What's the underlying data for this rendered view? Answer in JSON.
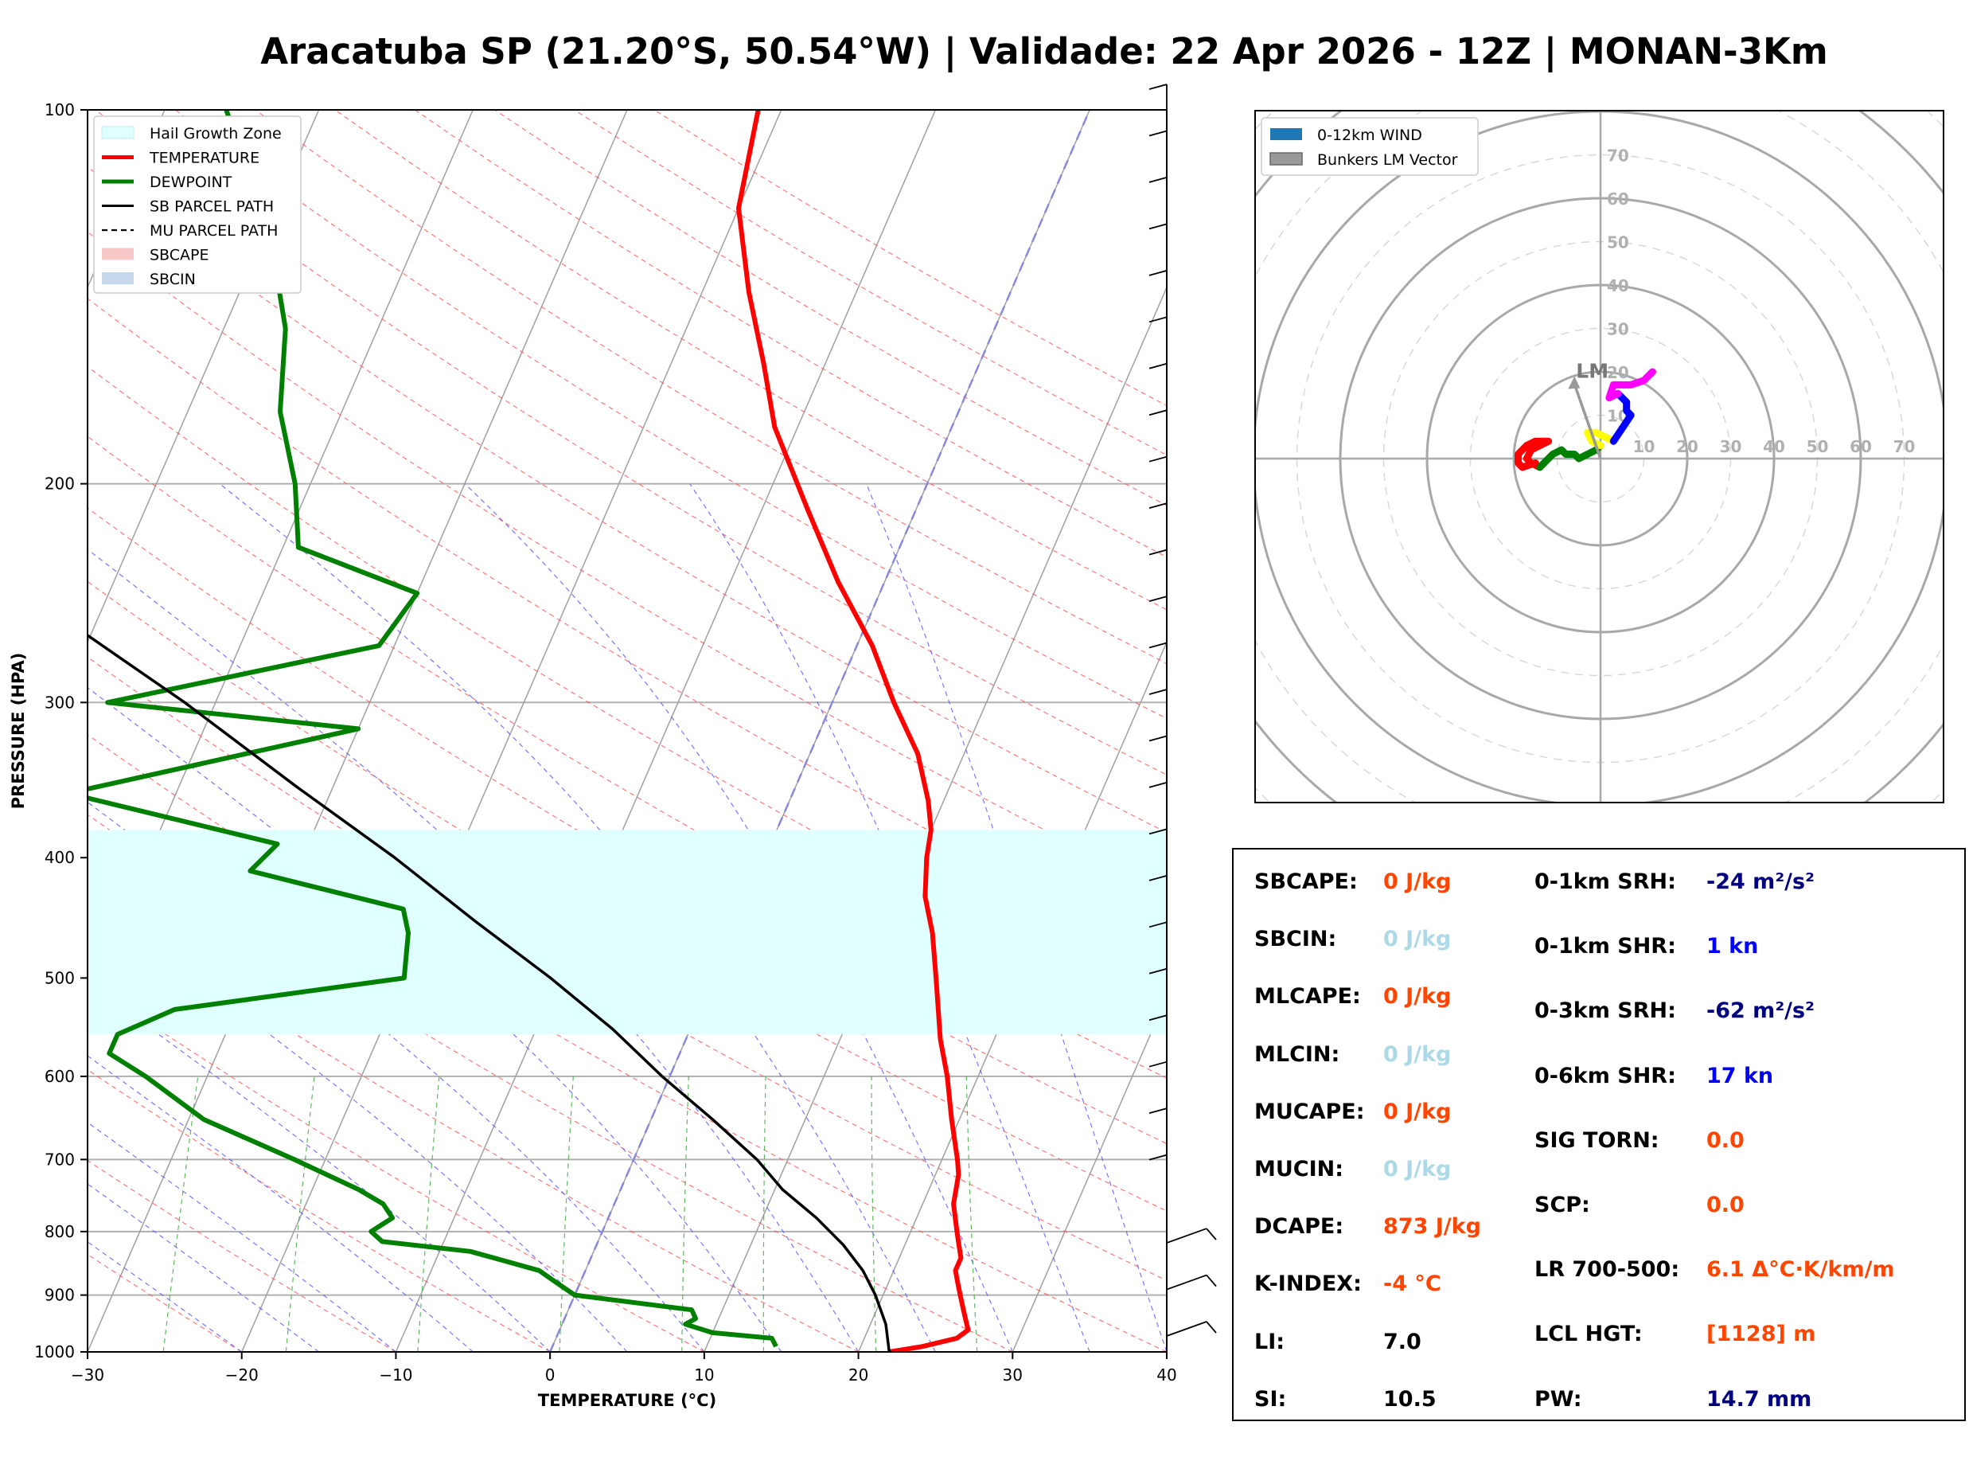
{
  "title": "Aracatuba SP (21.20°S, 50.54°W) | Validade: 22 Apr 2026 - 12Z | MONAN-3Km",
  "chart_data": [
    {
      "type": "line",
      "name": "skewt",
      "xlabel": "TEMPERATURE (°C)",
      "ylabel": "PRESSURE (HPA)",
      "xlim": [
        -30,
        40
      ],
      "ylim": [
        1000,
        100
      ],
      "y_scale": "log",
      "x_ticks": [
        "−30",
        "−20",
        "−10",
        "0",
        "10",
        "20",
        "30",
        "40"
      ],
      "y_ticks": [
        "100",
        "200",
        "300",
        "400",
        "500",
        "600",
        "700",
        "800",
        "900",
        "1000"
      ],
      "grid": true,
      "legend_position": "top-left",
      "legend": [
        {
          "label": "Hail Growth Zone",
          "color": "#e0ffff"
        },
        {
          "label": "TEMPERATURE",
          "color": "#ff0000"
        },
        {
          "label": "DEWPOINT",
          "color": "#008000"
        },
        {
          "label": "SB PARCEL PATH",
          "color": "#000000"
        },
        {
          "label": "MU PARCEL PATH",
          "color": "#000000"
        },
        {
          "label": "SBCAPE",
          "color": "#f8c8c8"
        },
        {
          "label": "SBCIN",
          "color": "#c6d9ec"
        }
      ],
      "hail_growth_zone": {
        "p_top": 380,
        "p_bottom": 555
      },
      "series": [
        {
          "name": "TEMPERATURE",
          "color": "#ff0000",
          "points": [
            [
              1000,
              22
            ],
            [
              990,
              24
            ],
            [
              975,
              26
            ],
            [
              960,
              26.5
            ],
            [
              940,
              26
            ],
            [
              920,
              25.5
            ],
            [
              900,
              25
            ],
            [
              880,
              24.5
            ],
            [
              860,
              24
            ],
            [
              840,
              24
            ],
            [
              820,
              23.5
            ],
            [
              800,
              23
            ],
            [
              760,
              22
            ],
            [
              720,
              21.5
            ],
            [
              700,
              21
            ],
            [
              650,
              19.5
            ],
            [
              600,
              18
            ],
            [
              560,
              16.5
            ],
            [
              500,
              14.5
            ],
            [
              460,
              13
            ],
            [
              430,
              11.5
            ],
            [
              400,
              10.5
            ],
            [
              380,
              10
            ],
            [
              360,
              9
            ],
            [
              330,
              7
            ],
            [
              300,
              4
            ],
            [
              270,
              1
            ],
            [
              240,
              -3
            ],
            [
              210,
              -7
            ],
            [
              180,
              -11.5
            ],
            [
              160,
              -14
            ],
            [
              140,
              -17
            ],
            [
              120,
              -20
            ],
            [
              100,
              -21.5
            ]
          ]
        },
        {
          "name": "DEWPOINT",
          "color": "#008000",
          "points": [
            [
              990,
              14.5
            ],
            [
              975,
              14
            ],
            [
              965,
              10
            ],
            [
              950,
              8
            ],
            [
              940,
              8.5
            ],
            [
              925,
              8
            ],
            [
              900,
              0
            ],
            [
              880,
              -1.5
            ],
            [
              860,
              -3
            ],
            [
              830,
              -8
            ],
            [
              815,
              -14
            ],
            [
              800,
              -15
            ],
            [
              780,
              -14
            ],
            [
              760,
              -15
            ],
            [
              740,
              -17
            ],
            [
              700,
              -22
            ],
            [
              650,
              -29
            ],
            [
              600,
              -34
            ],
            [
              575,
              -37
            ],
            [
              555,
              -37
            ],
            [
              530,
              -34
            ],
            [
              500,
              -20
            ],
            [
              460,
              -21
            ],
            [
              440,
              -22
            ],
            [
              410,
              -33
            ],
            [
              390,
              -32
            ],
            [
              355,
              -47
            ],
            [
              315,
              -30
            ],
            [
              300,
              -47
            ],
            [
              270,
              -31
            ],
            [
              245,
              -30
            ],
            [
              225,
              -39
            ],
            [
              200,
              -41
            ],
            [
              175,
              -44
            ],
            [
              150,
              -46
            ],
            [
              130,
              -49
            ],
            [
              120,
              -51
            ],
            [
              100,
              -56
            ]
          ]
        },
        {
          "name": "SB PARCEL PATH",
          "color": "#000000",
          "points": [
            [
              1000,
              22
            ],
            [
              950,
              21
            ],
            [
              900,
              19.5
            ],
            [
              860,
              18
            ],
            [
              820,
              16
            ],
            [
              780,
              13.5
            ],
            [
              740,
              10.5
            ],
            [
              700,
              8
            ],
            [
              650,
              4
            ],
            [
              600,
              -0.5
            ],
            [
              550,
              -5
            ],
            [
              500,
              -10.5
            ],
            [
              450,
              -17
            ],
            [
              400,
              -24
            ],
            [
              350,
              -32.5
            ],
            [
              300,
              -42
            ],
            [
              250,
              -54
            ],
            [
              200,
              -67
            ],
            [
              150,
              -83
            ],
            [
              100,
              -98
            ]
          ]
        }
      ]
    },
    {
      "type": "line",
      "name": "hodograph",
      "rings": [
        10,
        20,
        30,
        40,
        50,
        60,
        70
      ],
      "ring_labels": [
        "10",
        "20",
        "30",
        "40",
        "50",
        "60",
        "70"
      ],
      "legend_position": "top-left",
      "legend": [
        {
          "label": "0-12km WIND",
          "color": "#1f77b4"
        },
        {
          "label": "Bunkers LM Vector",
          "color": "#999999"
        }
      ],
      "lm_label": "LM",
      "lm_vector": [
        -6,
        19
      ],
      "segments": [
        {
          "color": "#ff0000",
          "points": [
            [
              -15,
              -1
            ],
            [
              -18,
              -2
            ],
            [
              -19,
              -1
            ],
            [
              -19,
              1
            ],
            [
              -17,
              3
            ],
            [
              -15,
              4
            ],
            [
              -12,
              4
            ],
            [
              -14,
              3
            ],
            [
              -16,
              2
            ],
            [
              -17,
              0
            ],
            [
              -16,
              -1
            ],
            [
              -14,
              -2
            ]
          ]
        },
        {
          "color": "#008000",
          "points": [
            [
              -14,
              -2
            ],
            [
              -11,
              1
            ],
            [
              -9,
              2
            ],
            [
              -8,
              1
            ],
            [
              -6,
              1
            ],
            [
              -5,
              0
            ],
            [
              -3,
              1
            ],
            [
              -1,
              2
            ],
            [
              0,
              3
            ]
          ]
        },
        {
          "color": "#ffff00",
          "points": [
            [
              0,
              3
            ],
            [
              -2,
              4
            ],
            [
              -3,
              6
            ],
            [
              -1,
              6
            ],
            [
              1,
              5
            ],
            [
              3,
              4
            ]
          ]
        },
        {
          "color": "#0000ff",
          "points": [
            [
              3,
              4
            ],
            [
              5,
              7
            ],
            [
              7,
              10
            ],
            [
              6,
              11
            ],
            [
              6,
              13
            ],
            [
              4,
              15
            ]
          ]
        },
        {
          "color": "#ff00ff",
          "points": [
            [
              4,
              15
            ],
            [
              2,
              14
            ],
            [
              3,
              17
            ],
            [
              5,
              17
            ],
            [
              7,
              17
            ],
            [
              10,
              18
            ],
            [
              11,
              19
            ],
            [
              12,
              20
            ]
          ]
        }
      ]
    }
  ],
  "stats": {
    "left": [
      {
        "label": "SBCAPE:",
        "value": "0 J/kg",
        "color": "#ff4500"
      },
      {
        "label": "SBCIN:",
        "value": "0 J/kg",
        "color": "#add8e6"
      },
      {
        "label": "MLCAPE:",
        "value": "0 J/kg",
        "color": "#ff4500"
      },
      {
        "label": "MLCIN:",
        "value": "0 J/kg",
        "color": "#add8e6"
      },
      {
        "label": "MUCAPE:",
        "value": "0 J/kg",
        "color": "#ff4500"
      },
      {
        "label": "MUCIN:",
        "value": "0 J/kg",
        "color": "#add8e6"
      },
      {
        "label": "DCAPE:",
        "value": "873 J/kg",
        "color": "#ff4500"
      },
      {
        "label": "K-INDEX:",
        "value": "-4 °C",
        "color": "#ff4500"
      },
      {
        "label": "LI:",
        "value": "7.0",
        "color": "#000000"
      },
      {
        "label": "SI:",
        "value": "10.5",
        "color": "#000000"
      }
    ],
    "right": [
      {
        "label": "0-1km SRH:",
        "value": "-24 m²/s²",
        "color": "#000080"
      },
      {
        "label": "0-1km SHR:",
        "value": "1 kn",
        "color": "#0000ff"
      },
      {
        "label": "0-3km SRH:",
        "value": "-62 m²/s²",
        "color": "#000080"
      },
      {
        "label": "0-6km SHR:",
        "value": "17 kn",
        "color": "#0000ff"
      },
      {
        "label": "SIG TORN:",
        "value": "0.0",
        "color": "#ff4500"
      },
      {
        "label": "SCP:",
        "value": "0.0",
        "color": "#ff4500"
      },
      {
        "label": "LR 700-500:",
        "value": "6.1 Δ°C·K/km/m",
        "color": "#ff4500"
      },
      {
        "label": "LCL HGT:",
        "value": "[1128] m",
        "color": "#ff4500"
      },
      {
        "label": "PW:",
        "value": "14.7 mm",
        "color": "#000080"
      }
    ]
  }
}
